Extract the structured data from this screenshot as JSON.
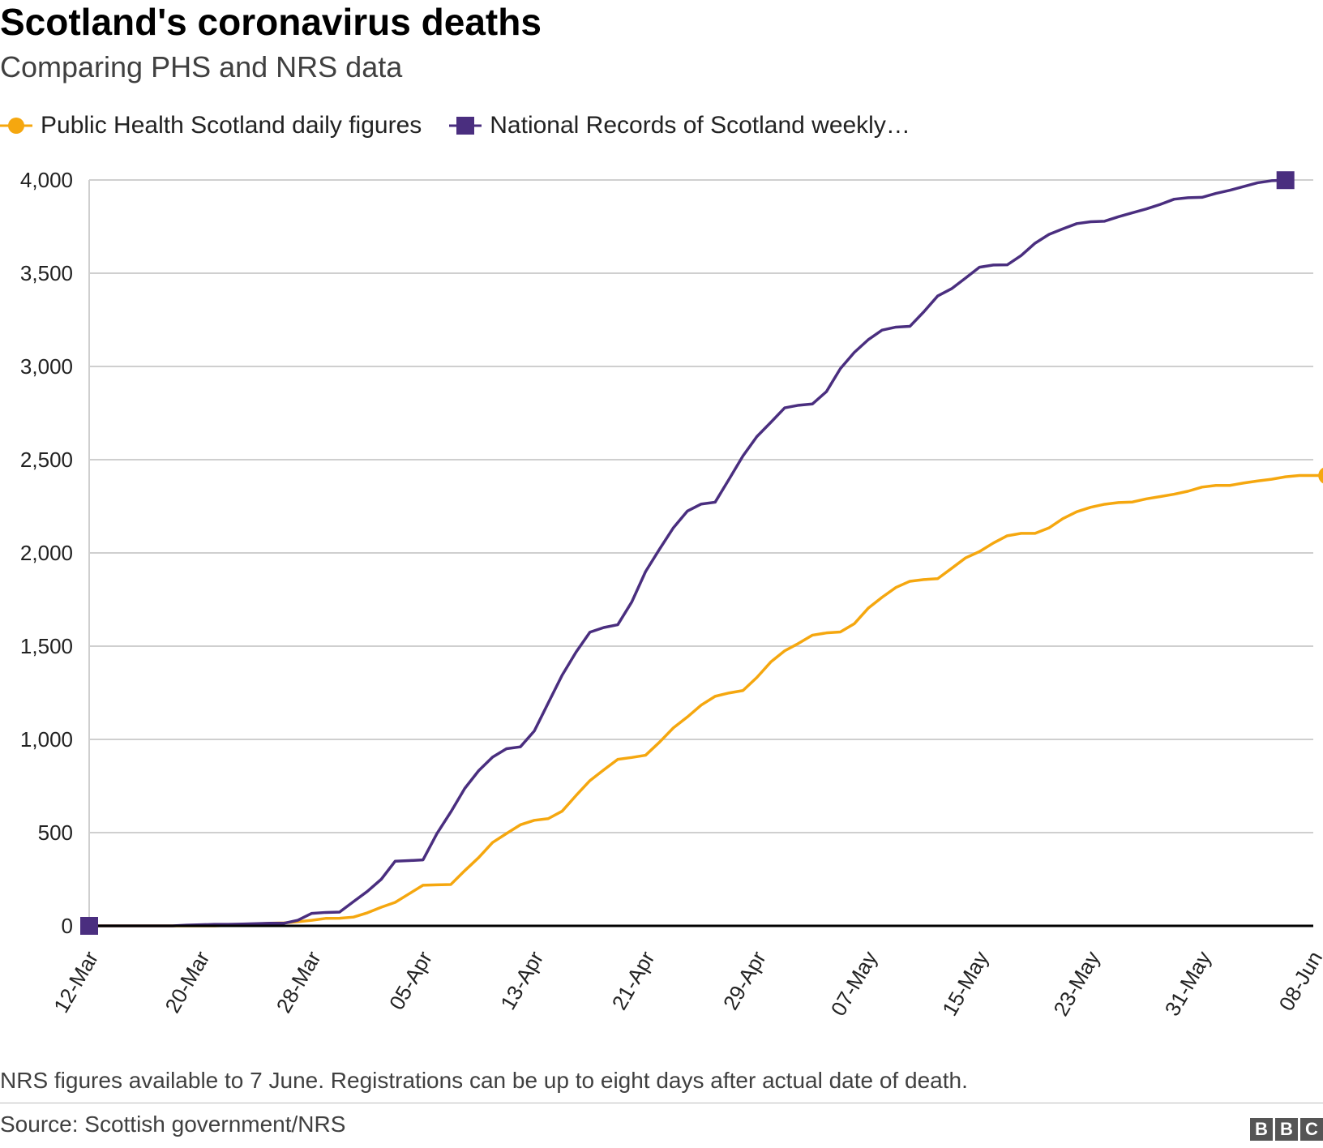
{
  "header": {
    "title": "Scotland's coronavirus deaths",
    "subtitle": "Comparing PHS and NRS data"
  },
  "legend": {
    "items": [
      {
        "label": "Public Health Scotland daily figures",
        "color": "#f5a70f",
        "marker": "circle"
      },
      {
        "label": "National Records of Scotland weekly…",
        "color": "#4a2e7f",
        "marker": "square"
      }
    ]
  },
  "footer": {
    "note": "NRS figures available to 7 June. Registrations can be up to eight days after actual date of death.",
    "source": "Source: Scottish government/NRS",
    "logo": [
      "B",
      "B",
      "C"
    ]
  },
  "chart_data": {
    "type": "line",
    "title": "Scotland's coronavirus deaths",
    "xlabel": "",
    "ylabel": "",
    "ylim": [
      0,
      4000
    ],
    "yticks": [
      0,
      500,
      1000,
      1500,
      2000,
      2500,
      3000,
      3500,
      4000
    ],
    "ytick_labels": [
      "0",
      "500",
      "1,000",
      "1,500",
      "2,000",
      "2,500",
      "3,000",
      "3,500",
      "4,000"
    ],
    "x_range_days": [
      0,
      88
    ],
    "xticks": [
      {
        "day": 0,
        "label": "12-Mar"
      },
      {
        "day": 8,
        "label": "20-Mar"
      },
      {
        "day": 16,
        "label": "28-Mar"
      },
      {
        "day": 24,
        "label": "05-Apr"
      },
      {
        "day": 32,
        "label": "13-Apr"
      },
      {
        "day": 40,
        "label": "21-Apr"
      },
      {
        "day": 48,
        "label": "29-Apr"
      },
      {
        "day": 56,
        "label": "07-May"
      },
      {
        "day": 64,
        "label": "15-May"
      },
      {
        "day": 72,
        "label": "23-May"
      },
      {
        "day": 80,
        "label": "31-May"
      },
      {
        "day": 88,
        "label": "08-Jun"
      }
    ],
    "grid": true,
    "legend_position": "top-left",
    "series": [
      {
        "name": "Public Health Scotland daily figures",
        "color": "#f5a70f",
        "marker": "circle",
        "start_day": 0,
        "values": [
          0,
          0,
          0,
          0,
          0,
          0,
          0,
          0,
          0,
          0,
          2,
          5,
          10,
          14,
          16,
          22,
          30,
          40,
          41,
          47,
          70,
          100,
          126,
          172,
          218,
          220,
          222,
          296,
          366,
          447,
          495,
          542,
          566,
          575,
          615,
          699,
          779,
          837,
          893,
          903,
          915,
          985,
          1062,
          1120,
          1184,
          1231,
          1249,
          1262,
          1332,
          1415,
          1475,
          1515,
          1559,
          1571,
          1576,
          1620,
          1703,
          1762,
          1815,
          1848,
          1857,
          1862,
          1917,
          1973,
          2007,
          2053,
          2092,
          2105,
          2105,
          2134,
          2184,
          2221,
          2245,
          2261,
          2270,
          2273,
          2290,
          2302,
          2315,
          2331,
          2353,
          2362,
          2362,
          2375,
          2386,
          2395,
          2408,
          2415,
          2415,
          2415
        ]
      },
      {
        "name": "National Records of Scotland weekly…",
        "color": "#4a2e7f",
        "marker": "square",
        "start_day": 0,
        "values": [
          0,
          0,
          0,
          0,
          0,
          0,
          0,
          4,
          6,
          8,
          8,
          10,
          12,
          14,
          14,
          30,
          67,
          72,
          74,
          130,
          185,
          250,
          347,
          350,
          354,
          495,
          611,
          737,
          832,
          905,
          950,
          960,
          1045,
          1195,
          1344,
          1468,
          1575,
          1600,
          1615,
          1736,
          1900,
          2020,
          2135,
          2224,
          2262,
          2272,
          2395,
          2520,
          2624,
          2700,
          2778,
          2792,
          2799,
          2865,
          2988,
          3075,
          3143,
          3195,
          3211,
          3215,
          3293,
          3378,
          3417,
          3474,
          3532,
          3544,
          3545,
          3595,
          3661,
          3708,
          3738,
          3766,
          3776,
          3779,
          3803,
          3824,
          3845,
          3869,
          3897,
          3905,
          3907,
          3928,
          3945,
          3965,
          3985,
          3996,
          3999
        ]
      }
    ]
  }
}
